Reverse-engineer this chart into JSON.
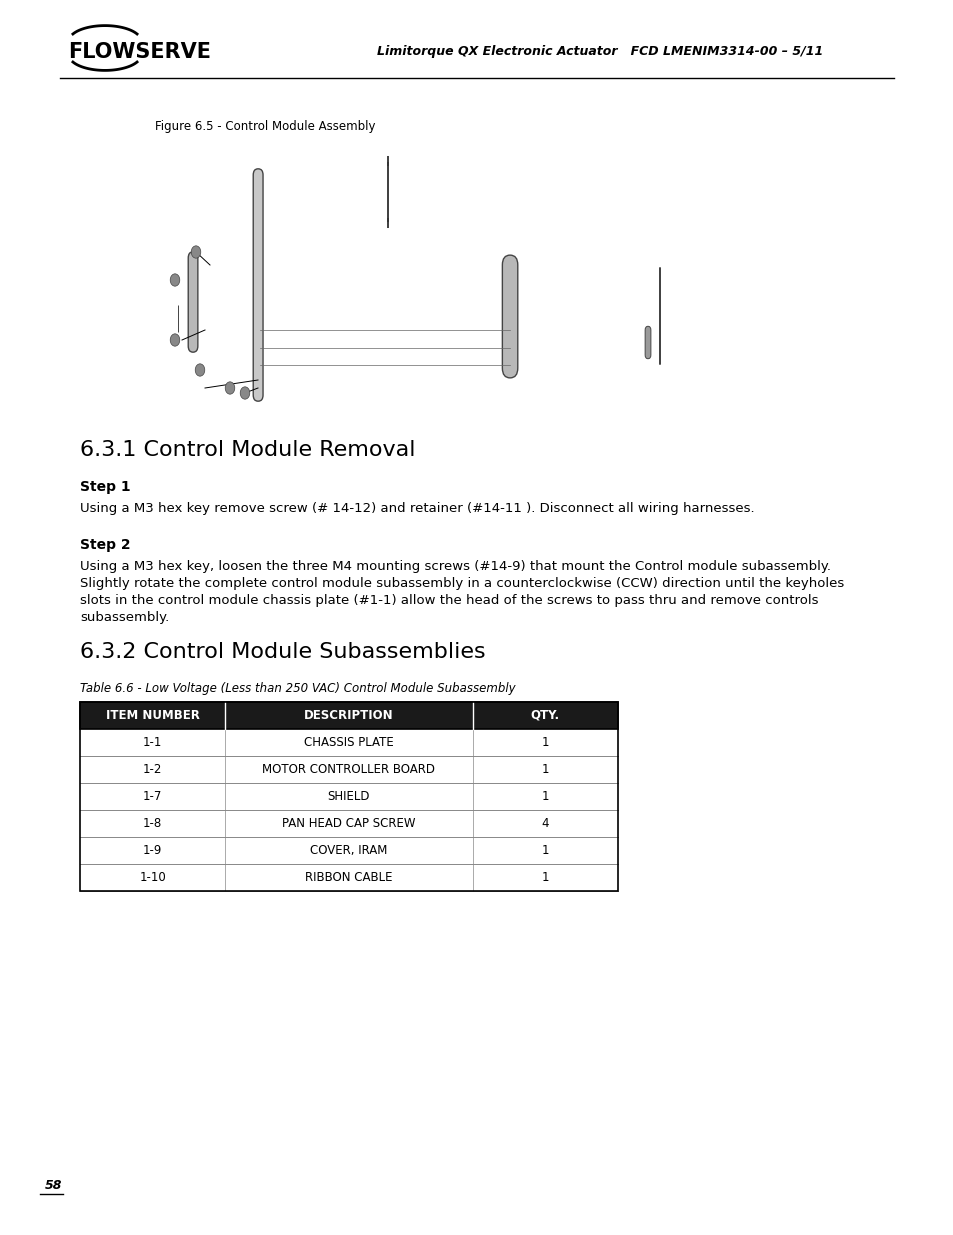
{
  "page_number": "58",
  "header_title_italic": "Limitorque QX Electronic Actuator   FCD LMENIM3314-00 – 5/11",
  "figure_caption": "Figure 6.5 - Control Module Assembly",
  "section1_title": "6.3.1 Control Module Removal",
  "step1_label": "Step 1",
  "step1_text": "Using a M3 hex key remove screw (# 14-12) and retainer (#14-11 ). Disconnect all wiring harnesses.",
  "step2_label": "Step 2",
  "step2_lines": [
    "Using a M3 hex key, loosen the three M4 mounting screws (#14-9) that mount the Control module subassembly.",
    "Slightly rotate the complete control module subassembly in a counterclockwise (CCW) direction until the keyholes",
    "slots in the control module chassis plate (#1-1) allow the head of the screws to pass thru and remove controls",
    "subassembly."
  ],
  "section2_title": "6.3.2 Control Module Subassemblies",
  "table_caption": "Table 6.6 - Low Voltage (Less than 250 VAC) Control Module Subassembly",
  "table_headers": [
    "ITEM NUMBER",
    "DESCRIPTION",
    "QTY."
  ],
  "table_rows": [
    [
      "1-1",
      "CHASSIS PLATE",
      "1"
    ],
    [
      "1-2",
      "MOTOR CONTROLLER BOARD",
      "1"
    ],
    [
      "1-7",
      "SHIELD",
      "1"
    ],
    [
      "1-8",
      "PAN HEAD CAP SCREW",
      "4"
    ],
    [
      "1-9",
      "COVER, IRAM",
      "1"
    ],
    [
      "1-10",
      "RIBBON CABLE",
      "1"
    ]
  ],
  "bg_color": "#ffffff",
  "table_header_bg": "#1a1a1a",
  "table_header_text": "#ffffff",
  "table_row_text": "#000000"
}
